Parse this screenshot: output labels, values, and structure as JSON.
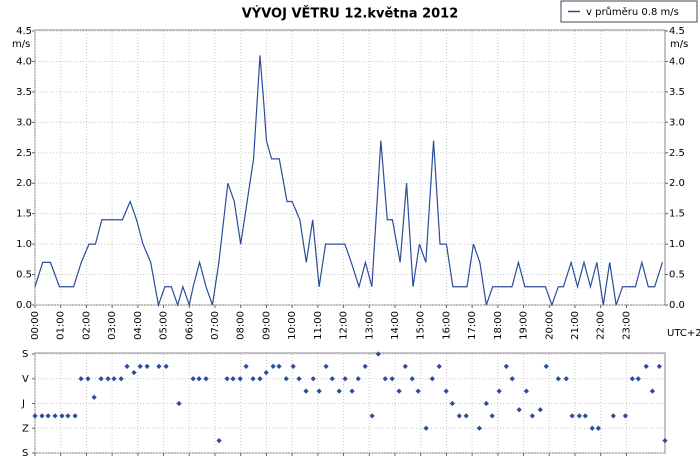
{
  "chart_data": [
    {
      "type": "line",
      "title": "VÝVOJ VĚTRU  12.května 2012",
      "y_unit": "m/s",
      "x_note": "UTC+2",
      "grid": true,
      "series": [
        {
          "name": "v průměru 0.8 m/s",
          "color": "#2b4c9a",
          "values": [
            0.3,
            0.7,
            0.7,
            0.3,
            0.3,
            0.7,
            1.0,
            1.0,
            1.4,
            1.4,
            1.7,
            1.4,
            1.0,
            0.7,
            0.0,
            0.3,
            0.3,
            0.0,
            0.3,
            0.0,
            0.3,
            0.7,
            0.3,
            0.0,
            0.7,
            2.0,
            1.7,
            1.0,
            1.7,
            2.4,
            4.1,
            3.3,
            2.7,
            2.4,
            2.4,
            1.7,
            1.7,
            1.4,
            0.7,
            1.4,
            0.3,
            1.0,
            1.0,
            0.7,
            0.3,
            0.7,
            0.3,
            2.7,
            1.4,
            1.4,
            0.7,
            2.0,
            0.3,
            1.0,
            0.7,
            2.7,
            1.0,
            1.0,
            0.3,
            0.3,
            1.0,
            0.7,
            0.0,
            0.3,
            0.3,
            0.7,
            0.3,
            0.3,
            0.0,
            0.3,
            0.3,
            0.7,
            0.3,
            0.7,
            0.3,
            0.7,
            0.0,
            0.7,
            0.0,
            0.3,
            0.3,
            0.7,
            0.3,
            0.3,
            0.7
          ]
        }
      ],
      "x": [
        0,
        0.3,
        0.6,
        0.95,
        1.5,
        1.8,
        2.1,
        2.35,
        2.6,
        3.4,
        3.7,
        3.95,
        4.2,
        4.5,
        4.8,
        5.05,
        5.3,
        5.55,
        5.75,
        6.0,
        6.15,
        6.4,
        6.65,
        6.9,
        7.15,
        7.5,
        7.75,
        8.0,
        8.25,
        8.5,
        8.75,
        8.9,
        9.0,
        9.2,
        9.5,
        9.8,
        10.0,
        10.3,
        10.55,
        10.8,
        11.05,
        11.3,
        12.05,
        12.3,
        12.6,
        12.85,
        13.1,
        13.45,
        13.7,
        13.9,
        14.2,
        14.45,
        14.7,
        14.95,
        15.2,
        15.5,
        15.75,
        16.0,
        16.25,
        16.8,
        17.05,
        17.3,
        17.55,
        17.8,
        18.55,
        18.8,
        19.05,
        19.85,
        20.1,
        20.35,
        20.55,
        20.85,
        21.1,
        21.35,
        21.6,
        21.85,
        22.1,
        22.35,
        22.6,
        22.85,
        23.35,
        23.6,
        23.85,
        24.1,
        24.4
      ],
      "xlim": [
        0,
        24.5
      ],
      "xticks": [
        {
          "value": 0,
          "label": "00:00"
        },
        {
          "value": 1,
          "label": "01:00"
        },
        {
          "value": 2,
          "label": "02:00"
        },
        {
          "value": 3,
          "label": "03:00"
        },
        {
          "value": 4,
          "label": "04:00"
        },
        {
          "value": 5,
          "label": "05:00"
        },
        {
          "value": 6,
          "label": "06:00"
        },
        {
          "value": 7,
          "label": "07:00"
        },
        {
          "value": 8,
          "label": "08:00"
        },
        {
          "value": 9,
          "label": "09:00"
        },
        {
          "value": 10,
          "label": "10:00"
        },
        {
          "value": 11,
          "label": "11:00"
        },
        {
          "value": 12,
          "label": "12:00"
        },
        {
          "value": 13,
          "label": "13:00"
        },
        {
          "value": 14,
          "label": "14:00"
        },
        {
          "value": 15,
          "label": "15:00"
        },
        {
          "value": 16,
          "label": "16:00"
        },
        {
          "value": 17,
          "label": "17:00"
        },
        {
          "value": 18,
          "label": "18:00"
        },
        {
          "value": 19,
          "label": "19:00"
        },
        {
          "value": 20,
          "label": "20:00"
        },
        {
          "value": 21,
          "label": "21:00"
        },
        {
          "value": 22,
          "label": "22:00"
        },
        {
          "value": 23,
          "label": "23:00"
        }
      ],
      "ylim": [
        0,
        4.5
      ],
      "yticks": [
        {
          "value": 0,
          "label": "0.0"
        },
        0.5,
        {
          "value": 1,
          "label": "1.0"
        },
        1.5,
        {
          "value": 2,
          "label": "2.0"
        },
        2.5,
        {
          "value": 3,
          "label": "3.0"
        },
        3.5,
        {
          "value": 4,
          "label": "4.0"
        },
        4.5
      ]
    },
    {
      "type": "scatter",
      "color": "#2b4c9a",
      "grid": true,
      "x": [
        0,
        0.27,
        0.51,
        0.78,
        1.05,
        1.28,
        1.56,
        1.79,
        2.06,
        2.3,
        2.57,
        2.84,
        3.07,
        3.35,
        3.58,
        3.85,
        4.09,
        4.36,
        4.82,
        5.1,
        5.6,
        6.15,
        6.38,
        6.65,
        7.16,
        7.47,
        7.7,
        7.98,
        8.21,
        8.48,
        8.75,
        8.99,
        9.26,
        9.49,
        9.77,
        10.04,
        10.27,
        10.54,
        10.82,
        11.05,
        11.32,
        11.56,
        11.83,
        12.06,
        12.33,
        12.57,
        12.84,
        13.11,
        13.35,
        13.62,
        13.89,
        14.16,
        14.4,
        14.67,
        14.9,
        15.21,
        15.45,
        15.72,
        15.99,
        16.23,
        16.5,
        16.77,
        17.28,
        17.55,
        17.78,
        18.05,
        18.33,
        18.56,
        18.83,
        19.11,
        19.34,
        19.65,
        19.88,
        20.35,
        20.66,
        20.89,
        21.17,
        21.4,
        21.67,
        21.91,
        22.49,
        22.96,
        23.23,
        23.46,
        23.77,
        24.01,
        24.28,
        24.5
      ],
      "values": [
        225,
        225,
        225,
        225,
        225,
        225,
        225,
        90,
        90,
        157.5,
        90,
        90,
        90,
        90,
        45,
        67.5,
        45,
        45,
        45,
        45,
        180,
        90,
        90,
        90,
        315,
        90,
        90,
        90,
        45,
        90,
        90,
        67.5,
        45,
        45,
        90,
        45,
        90,
        135,
        90,
        135,
        45,
        90,
        135,
        90,
        135,
        90,
        45,
        225,
        0,
        90,
        90,
        135,
        45,
        90,
        135,
        270,
        90,
        45,
        135,
        180,
        225,
        225,
        270,
        180,
        225,
        135,
        45,
        90,
        202.5,
        135,
        225,
        202.5,
        45,
        90,
        90,
        225,
        225,
        225,
        270,
        270,
        225,
        225,
        90,
        90,
        45,
        135,
        45,
        315
      ],
      "xlim": [
        0,
        24.5
      ],
      "ylim": [
        360,
        0
      ],
      "yticks": [
        {
          "value": 0,
          "label": "S"
        },
        {
          "value": 90,
          "label": "V"
        },
        {
          "value": 180,
          "label": "J"
        },
        {
          "value": 270,
          "label": "Z"
        },
        {
          "value": 360,
          "label": "S"
        }
      ]
    }
  ]
}
